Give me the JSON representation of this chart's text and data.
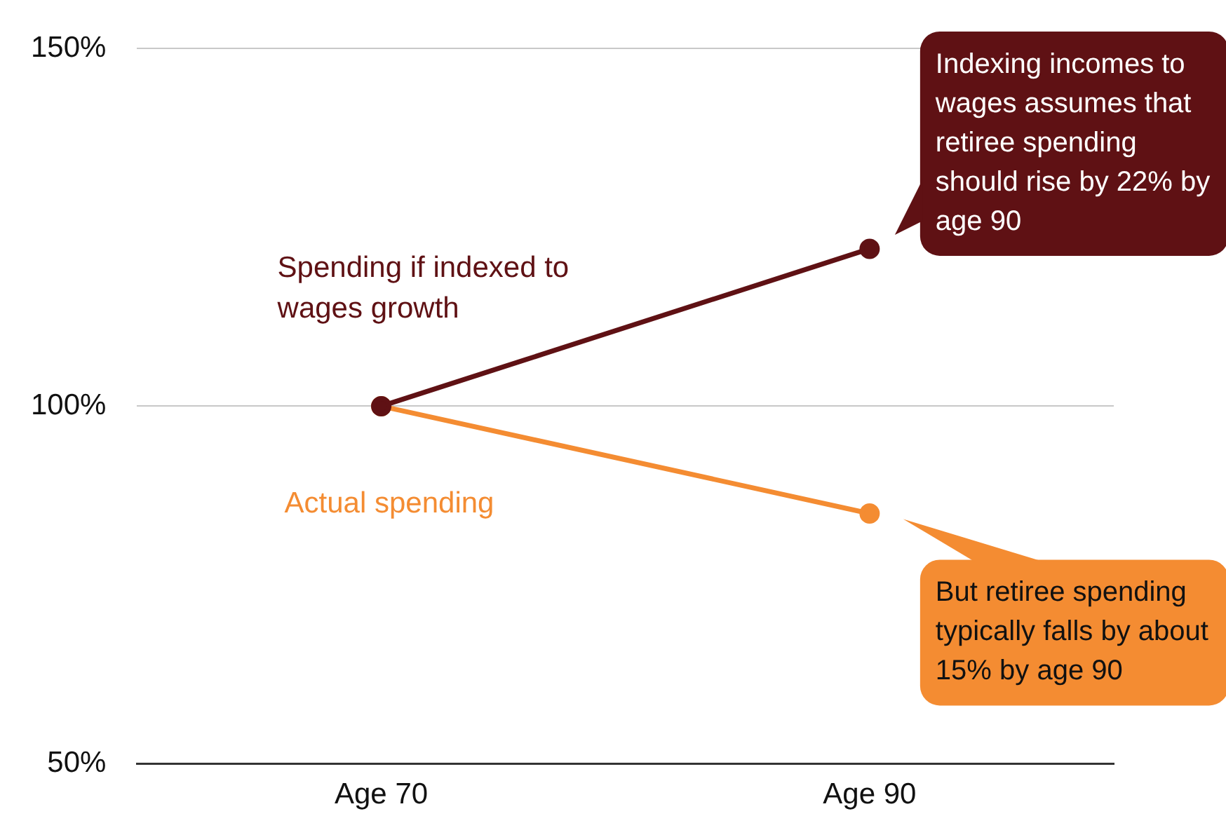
{
  "chart_data": {
    "type": "line",
    "categories": [
      "Age 70",
      "Age 90"
    ],
    "series": [
      {
        "name": "Spending if indexed to wages growth",
        "color": "#5f1114",
        "values": [
          100,
          122
        ]
      },
      {
        "name": "Actual spending",
        "color": "#f48c32",
        "values": [
          100,
          85
        ]
      }
    ],
    "ylim": [
      50,
      150
    ],
    "yticks": [
      {
        "value": 50,
        "label": "50%"
      },
      {
        "value": 100,
        "label": "100%"
      },
      {
        "value": 150,
        "label": "150%"
      }
    ],
    "grid": "y",
    "legend": false,
    "marker": "circle",
    "line_style": "solid",
    "annotations": [
      "Indexing incomes to wages assumes that retiree spending should rise by 22% by age 90",
      "But retiree spending typically falls by about 15% by age 90"
    ]
  }
}
